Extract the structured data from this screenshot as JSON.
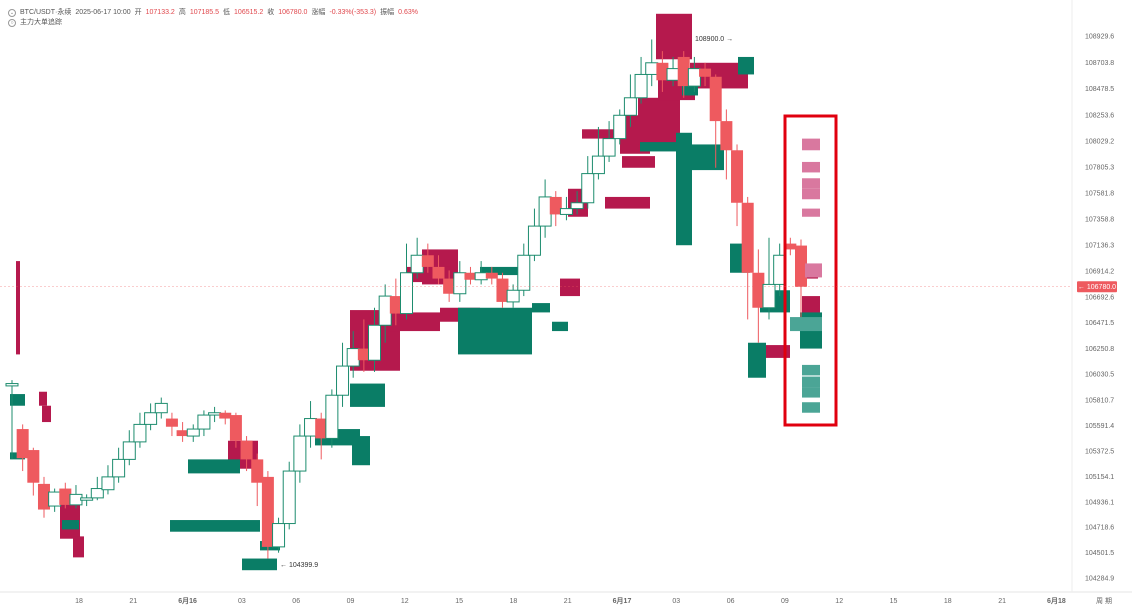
{
  "header": {
    "symbol": "BTC/USDT·永续",
    "datetime": "2025-06-17 10:00",
    "open_label": "开",
    "open": "107133.2",
    "high_label": "高",
    "high": "107185.5",
    "low_label": "低",
    "low": "106515.2",
    "close_label": "收",
    "close": "106780.0",
    "change_label": "涨幅",
    "change": "-0.33%(-353.3)",
    "amp_label": "振幅",
    "amp": "0.63%",
    "indicator": "主力大单追踪"
  },
  "colors": {
    "up": "#1d8c6e",
    "down": "#ee5a5f",
    "sell_block": "#b5194d",
    "buy_block": "#0a7d66",
    "sell_zone": "#d9789f",
    "buy_zone": "#4ba596",
    "highlight": "#e0000f",
    "price_tag": "#ee5a5f"
  },
  "chart_data": {
    "type": "candlestick",
    "y_ticks": [
      "108929.6",
      "108703.8",
      "108478.5",
      "108253.6",
      "108029.2",
      "107805.3",
      "107581.8",
      "107358.8",
      "107136.3",
      "106914.2",
      "106692.6",
      "106471.5",
      "106250.8",
      "106030.5",
      "105810.7",
      "105591.4",
      "105372.5",
      "105154.1",
      "104936.1",
      "104718.6",
      "104501.5",
      "104284.9"
    ],
    "x_ticks": [
      "18",
      "21",
      "6月16",
      "03",
      "06",
      "09",
      "12",
      "15",
      "18",
      "21",
      "6月17",
      "03",
      "06",
      "09",
      "12",
      "15",
      "18",
      "21",
      "6月18"
    ],
    "corner_label": "周 期",
    "last_price": "106780.0",
    "max_label": "108900.0",
    "min_label": "104399.9",
    "candles": [
      [
        105950,
        105930,
        105300,
        105980,
        "u"
      ],
      [
        105560,
        105310,
        105200,
        105600,
        "d"
      ],
      [
        105380,
        105100,
        104990,
        105400,
        "d"
      ],
      [
        105090,
        104870,
        104800,
        105150,
        "d"
      ],
      [
        104900,
        105020,
        104850,
        105050,
        "u"
      ],
      [
        105050,
        104910,
        104880,
        105100,
        "d"
      ],
      [
        104910,
        105000,
        104880,
        105080,
        "u"
      ],
      [
        104950,
        104970,
        104900,
        105000,
        "u"
      ],
      [
        104970,
        105050,
        104950,
        105150,
        "u"
      ],
      [
        105040,
        105150,
        105000,
        105250,
        "u"
      ],
      [
        105150,
        105300,
        105100,
        105400,
        "u"
      ],
      [
        105300,
        105450,
        105250,
        105550,
        "u"
      ],
      [
        105450,
        105600,
        105400,
        105700,
        "u"
      ],
      [
        105600,
        105700,
        105550,
        105780,
        "u"
      ],
      [
        105700,
        105780,
        105650,
        105830,
        "u"
      ],
      [
        105650,
        105580,
        105500,
        105700,
        "d"
      ],
      [
        105550,
        105500,
        105450,
        105620,
        "d"
      ],
      [
        105500,
        105560,
        105450,
        105600,
        "u"
      ],
      [
        105560,
        105680,
        105500,
        105720,
        "u"
      ],
      [
        105680,
        105700,
        105620,
        105750,
        "u"
      ],
      [
        105700,
        105650,
        105600,
        105720,
        "d"
      ],
      [
        105680,
        105460,
        105400,
        105700,
        "d"
      ],
      [
        105460,
        105300,
        105200,
        105500,
        "d"
      ],
      [
        105300,
        105100,
        104900,
        105350,
        "d"
      ],
      [
        105150,
        104550,
        104450,
        105200,
        "d"
      ],
      [
        104550,
        104750,
        104500,
        104800,
        "u"
      ],
      [
        104750,
        105200,
        104700,
        105280,
        "u"
      ],
      [
        105200,
        105500,
        105100,
        105600,
        "u"
      ],
      [
        105500,
        105650,
        105400,
        105800,
        "u"
      ],
      [
        105650,
        105480,
        105300,
        105700,
        "d"
      ],
      [
        105480,
        105850,
        105400,
        105900,
        "u"
      ],
      [
        105850,
        106100,
        105750,
        106300,
        "u"
      ],
      [
        106100,
        106250,
        106000,
        106400,
        "u"
      ],
      [
        106250,
        106150,
        106050,
        106500,
        "d"
      ],
      [
        106150,
        106450,
        106050,
        106600,
        "u"
      ],
      [
        106450,
        106700,
        106300,
        106800,
        "u"
      ],
      [
        106700,
        106550,
        106450,
        106850,
        "d"
      ],
      [
        106550,
        106900,
        106500,
        107150,
        "u"
      ],
      [
        106900,
        107050,
        106850,
        107200,
        "u"
      ],
      [
        107050,
        106950,
        106900,
        107150,
        "d"
      ],
      [
        106950,
        106850,
        106800,
        107050,
        "d"
      ],
      [
        106850,
        106720,
        106650,
        106920,
        "d"
      ],
      [
        106720,
        106900,
        106650,
        107000,
        "u"
      ],
      [
        106900,
        106840,
        106800,
        106950,
        "d"
      ],
      [
        106840,
        106900,
        106800,
        107000,
        "u"
      ],
      [
        106900,
        106850,
        106800,
        106950,
        "d"
      ],
      [
        106850,
        106650,
        106600,
        106900,
        "d"
      ],
      [
        106650,
        106750,
        106600,
        106800,
        "u"
      ],
      [
        106750,
        107050,
        106700,
        107150,
        "u"
      ],
      [
        107050,
        107300,
        107000,
        107450,
        "u"
      ],
      [
        107300,
        107550,
        107200,
        107700,
        "u"
      ],
      [
        107550,
        107400,
        107300,
        107600,
        "d"
      ],
      [
        107400,
        107450,
        107350,
        107550,
        "u"
      ],
      [
        107450,
        107500,
        107400,
        107600,
        "u"
      ],
      [
        107500,
        107750,
        107450,
        107900,
        "u"
      ],
      [
        107750,
        107900,
        107700,
        108150,
        "u"
      ],
      [
        107900,
        108050,
        107850,
        108200,
        "u"
      ],
      [
        108050,
        108250,
        108000,
        108300,
        "u"
      ],
      [
        108250,
        108400,
        108150,
        108600,
        "u"
      ],
      [
        108400,
        108600,
        108350,
        108750,
        "u"
      ],
      [
        108600,
        108700,
        108500,
        108900,
        "u"
      ],
      [
        108700,
        108550,
        108450,
        108800,
        "d"
      ],
      [
        108550,
        108650,
        108500,
        108750,
        "u"
      ],
      [
        108750,
        108500,
        108400,
        108800,
        "d"
      ],
      [
        108500,
        108650,
        108450,
        108750,
        "u"
      ],
      [
        108650,
        108580,
        108500,
        108700,
        "d"
      ],
      [
        108580,
        108200,
        107800,
        108600,
        "d"
      ],
      [
        108200,
        107950,
        107700,
        108300,
        "d"
      ],
      [
        107950,
        107500,
        107300,
        108000,
        "d"
      ],
      [
        107500,
        106900,
        106500,
        107550,
        "d"
      ],
      [
        106900,
        106600,
        106300,
        107100,
        "d"
      ],
      [
        106600,
        106800,
        106500,
        107200,
        "u"
      ],
      [
        106800,
        107050,
        106700,
        107150,
        "u"
      ],
      [
        107150,
        107100,
        107050,
        107200,
        "d"
      ],
      [
        107133,
        106780,
        106515,
        107185,
        "d"
      ]
    ],
    "sell_blocks": [
      [
        16,
        20,
        106200,
        107000
      ],
      [
        39,
        47,
        105760,
        105880
      ],
      [
        42,
        51,
        105620,
        105760
      ],
      [
        60,
        80,
        104620,
        104920
      ],
      [
        73,
        84,
        104460,
        104640
      ],
      [
        228,
        258,
        105220,
        105460
      ],
      [
        350,
        400,
        106060,
        106580
      ],
      [
        422,
        458,
        106800,
        107100
      ],
      [
        406,
        450,
        106820,
        106950
      ],
      [
        390,
        440,
        106400,
        106560
      ],
      [
        568,
        588,
        107380,
        107620
      ],
      [
        582,
        640,
        108050,
        108130
      ],
      [
        605,
        650,
        107450,
        107550
      ],
      [
        620,
        650,
        107920,
        108250
      ],
      [
        638,
        680,
        108000,
        108400
      ],
      [
        656,
        692,
        108730,
        109120
      ],
      [
        658,
        695,
        108380,
        108620
      ],
      [
        690,
        748,
        108480,
        108700
      ],
      [
        622,
        655,
        107800,
        107900
      ],
      [
        440,
        480,
        106480,
        106600
      ],
      [
        560,
        580,
        106700,
        106850
      ],
      [
        766,
        790,
        106170,
        106280
      ],
      [
        802,
        820,
        106550,
        106700
      ],
      [
        795,
        818,
        106850,
        106970
      ]
    ],
    "buy_blocks": [
      [
        10,
        25,
        105760,
        105860
      ],
      [
        10,
        25,
        105300,
        105360
      ],
      [
        62,
        79,
        104700,
        104780
      ],
      [
        170,
        260,
        104680,
        104780
      ],
      [
        188,
        240,
        105180,
        105300
      ],
      [
        242,
        277,
        104350,
        104450
      ],
      [
        260,
        280,
        104520,
        104600
      ],
      [
        315,
        360,
        105420,
        105560
      ],
      [
        352,
        370,
        105250,
        105500
      ],
      [
        350,
        385,
        105750,
        105950
      ],
      [
        458,
        532,
        106200,
        106600
      ],
      [
        480,
        520,
        106880,
        106950
      ],
      [
        532,
        550,
        106560,
        106640
      ],
      [
        552,
        568,
        106400,
        106480
      ],
      [
        640,
        680,
        107940,
        108020
      ],
      [
        676,
        692,
        107136,
        108100
      ],
      [
        692,
        724,
        107780,
        108000
      ],
      [
        738,
        754,
        108600,
        108750
      ],
      [
        682,
        698,
        108420,
        108520
      ],
      [
        748,
        766,
        106000,
        106300
      ],
      [
        760,
        790,
        106560,
        106750
      ],
      [
        730,
        750,
        106900,
        107150
      ],
      [
        800,
        822,
        106250,
        106560
      ]
    ],
    "zones": [
      [
        802,
        820,
        107950,
        108050,
        "s"
      ],
      [
        802,
        820,
        107760,
        107850,
        "s"
      ],
      [
        802,
        820,
        107620,
        107710,
        "s"
      ],
      [
        802,
        820,
        107530,
        107620,
        "s"
      ],
      [
        802,
        820,
        107380,
        107450,
        "s"
      ],
      [
        805,
        822,
        106860,
        106980,
        "s"
      ],
      [
        790,
        822,
        106400,
        106520,
        "b"
      ],
      [
        802,
        820,
        106020,
        106110,
        "b"
      ],
      [
        802,
        820,
        105920,
        106010,
        "b"
      ],
      [
        802,
        820,
        105830,
        105920,
        "b"
      ],
      [
        802,
        820,
        105700,
        105790,
        "b"
      ]
    ]
  }
}
